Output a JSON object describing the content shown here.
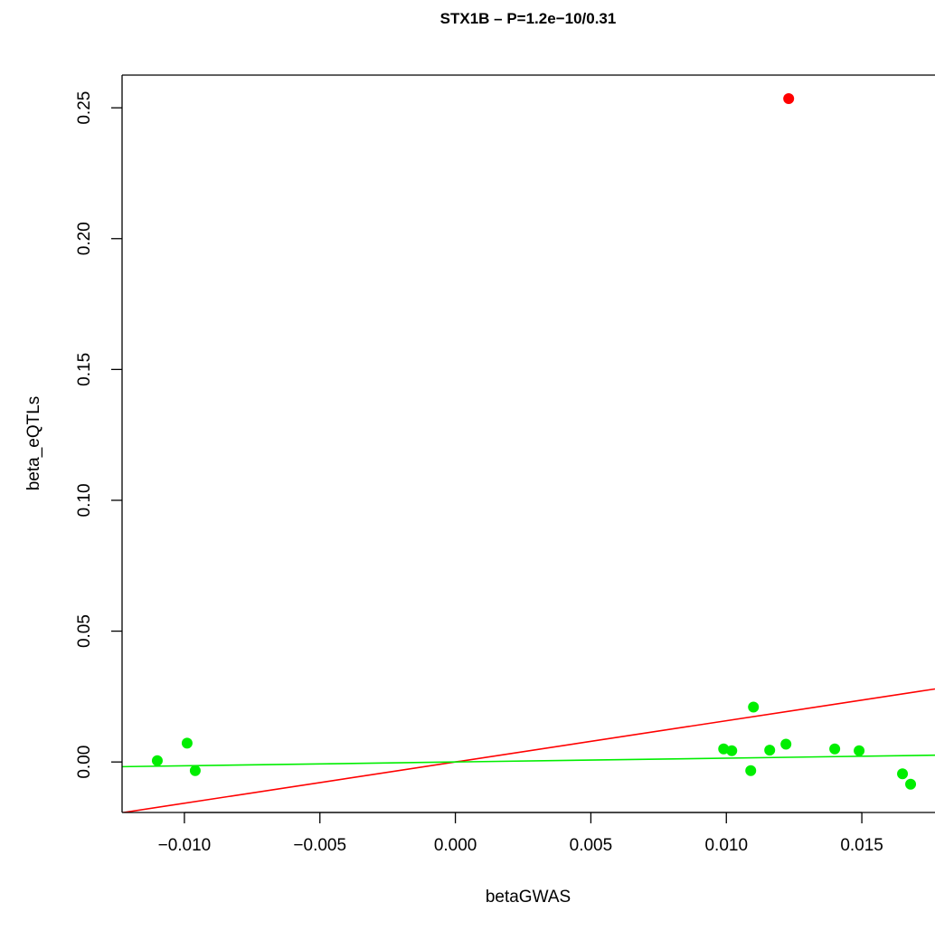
{
  "chart_data": {
    "type": "scatter",
    "title": "STX1B – P=1.2e−10/0.31",
    "xlabel": "betaGWAS",
    "ylabel": "beta_eQTLs",
    "xlim": [
      -0.0123,
      0.0177
    ],
    "ylim": [
      -0.0193,
      0.2625
    ],
    "x_ticks": [
      {
        "value": -0.01,
        "label": "−0.010"
      },
      {
        "value": -0.005,
        "label": "−0.005"
      },
      {
        "value": 0.0,
        "label": "0.000"
      },
      {
        "value": 0.005,
        "label": "0.005"
      },
      {
        "value": 0.01,
        "label": "0.010"
      },
      {
        "value": 0.015,
        "label": "0.015"
      }
    ],
    "y_ticks": [
      {
        "value": 0.0,
        "label": "0.00"
      },
      {
        "value": 0.05,
        "label": "0.05"
      },
      {
        "value": 0.1,
        "label": "0.10"
      },
      {
        "value": 0.15,
        "label": "0.15"
      },
      {
        "value": 0.2,
        "label": "0.20"
      },
      {
        "value": 0.25,
        "label": "0.25"
      }
    ],
    "grid": false,
    "series": [
      {
        "color": "#00ee00",
        "points": [
          {
            "x": -0.011,
            "y": 0.0005
          },
          {
            "x": -0.0099,
            "y": 0.0072
          },
          {
            "x": -0.0096,
            "y": -0.0033
          },
          {
            "x": 0.0099,
            "y": 0.005
          },
          {
            "x": 0.0102,
            "y": 0.0043
          },
          {
            "x": 0.0109,
            "y": -0.0033
          },
          {
            "x": 0.011,
            "y": 0.021
          },
          {
            "x": 0.0116,
            "y": 0.0045
          },
          {
            "x": 0.0122,
            "y": 0.0068
          },
          {
            "x": 0.014,
            "y": 0.005
          },
          {
            "x": 0.0149,
            "y": 0.0043
          },
          {
            "x": 0.0165,
            "y": -0.0045
          },
          {
            "x": 0.0168,
            "y": -0.0085
          }
        ]
      },
      {
        "color": "#ff0000",
        "points": [
          {
            "x": 0.0123,
            "y": 0.2535
          }
        ]
      }
    ],
    "lines": [
      {
        "color": "#ff0000",
        "slope": 1.5762,
        "intercept": 0.0
      },
      {
        "color": "#00ee00",
        "slope": 0.1458,
        "intercept": 0.0
      }
    ]
  }
}
